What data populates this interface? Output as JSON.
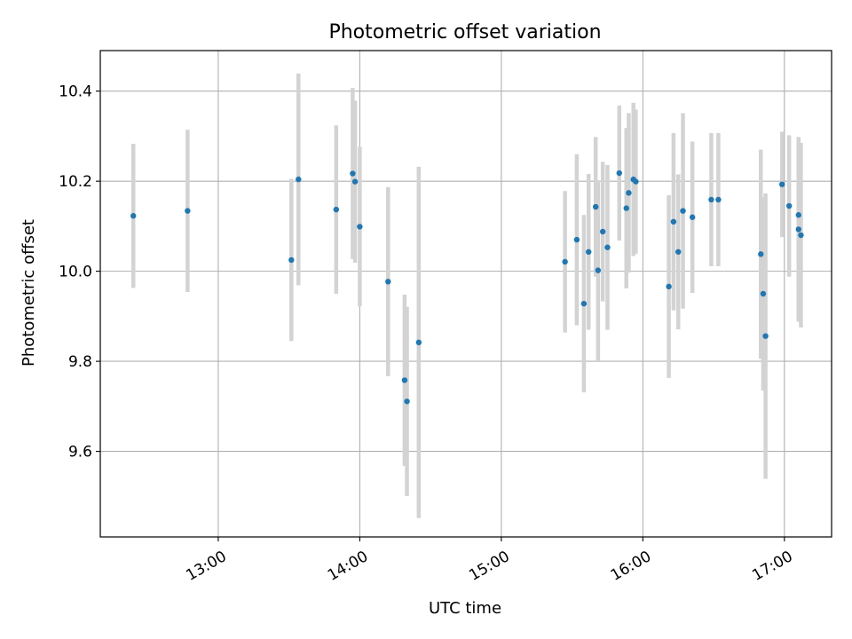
{
  "chart_data": {
    "type": "scatter",
    "title": "Photometric offset variation",
    "xlabel": "UTC time",
    "ylabel": "Photometric offset",
    "x_unit": "UTC hours",
    "xlim": [
      "12:10",
      "17:20"
    ],
    "ylim": [
      9.41,
      10.49
    ],
    "x_ticks": [
      {
        "time": "13:00",
        "label": "13:00"
      },
      {
        "time": "14:00",
        "label": "14:00"
      },
      {
        "time": "15:00",
        "label": "15:00"
      },
      {
        "time": "16:00",
        "label": "16:00"
      },
      {
        "time": "17:00",
        "label": "17:00"
      }
    ],
    "y_ticks": [
      {
        "value": 9.6,
        "label": "9.6"
      },
      {
        "value": 9.8,
        "label": "9.8"
      },
      {
        "value": 10.0,
        "label": "10.0"
      },
      {
        "value": 10.2,
        "label": "10.2"
      },
      {
        "value": 10.4,
        "label": "10.4"
      }
    ],
    "grid": true,
    "marker_color": "#1f77b4",
    "errorbar_color": "#d3d3d3",
    "points": [
      {
        "time": "12:24",
        "y": 10.123,
        "err": 0.16
      },
      {
        "time": "12:47",
        "y": 10.134,
        "err": 0.18
      },
      {
        "time": "13:31",
        "y": 10.025,
        "err": 0.18
      },
      {
        "time": "13:34",
        "y": 10.204,
        "err": 0.235
      },
      {
        "time": "13:50",
        "y": 10.137,
        "err": 0.187
      },
      {
        "time": "13:57",
        "y": 10.217,
        "err": 0.19
      },
      {
        "time": "13:58",
        "y": 10.199,
        "err": 0.18
      },
      {
        "time": "14:00",
        "y": 10.099,
        "err": 0.177
      },
      {
        "time": "14:12",
        "y": 9.977,
        "err": 0.21
      },
      {
        "time": "14:19",
        "y": 9.758,
        "err": 0.19
      },
      {
        "time": "14:20",
        "y": 9.711,
        "err": 0.21
      },
      {
        "time": "14:25",
        "y": 9.842,
        "err": 0.39
      },
      {
        "time": "15:27",
        "y": 10.021,
        "err": 0.157
      },
      {
        "time": "15:32",
        "y": 10.07,
        "err": 0.19
      },
      {
        "time": "15:35",
        "y": 9.928,
        "err": 0.197
      },
      {
        "time": "15:37",
        "y": 10.043,
        "err": 0.173
      },
      {
        "time": "15:40",
        "y": 10.143,
        "err": 0.155
      },
      {
        "time": "15:41",
        "y": 10.002,
        "err": 0.2
      },
      {
        "time": "15:43",
        "y": 10.088,
        "err": 0.155
      },
      {
        "time": "15:45",
        "y": 10.053,
        "err": 0.183
      },
      {
        "time": "15:50",
        "y": 10.218,
        "err": 0.15
      },
      {
        "time": "15:53",
        "y": 10.14,
        "err": 0.178
      },
      {
        "time": "15:54",
        "y": 10.174,
        "err": 0.177
      },
      {
        "time": "15:56",
        "y": 10.204,
        "err": 0.17
      },
      {
        "time": "15:57",
        "y": 10.199,
        "err": 0.16
      },
      {
        "time": "16:11",
        "y": 9.966,
        "err": 0.203
      },
      {
        "time": "16:13",
        "y": 10.11,
        "err": 0.197
      },
      {
        "time": "16:15",
        "y": 10.043,
        "err": 0.172
      },
      {
        "time": "16:17",
        "y": 10.134,
        "err": 0.217
      },
      {
        "time": "16:21",
        "y": 10.12,
        "err": 0.168
      },
      {
        "time": "16:29",
        "y": 10.159,
        "err": 0.148
      },
      {
        "time": "16:32",
        "y": 10.159,
        "err": 0.148
      },
      {
        "time": "16:50",
        "y": 10.038,
        "err": 0.232
      },
      {
        "time": "16:51",
        "y": 9.95,
        "err": 0.215
      },
      {
        "time": "16:52",
        "y": 9.856,
        "err": 0.317
      },
      {
        "time": "16:59",
        "y": 10.193,
        "err": 0.117
      },
      {
        "time": "17:02",
        "y": 10.145,
        "err": 0.157
      },
      {
        "time": "17:06",
        "y": 10.125,
        "err": 0.165
      },
      {
        "time": "17:06",
        "y": 10.093,
        "err": 0.205
      },
      {
        "time": "17:07",
        "y": 10.08,
        "err": 0.205
      }
    ]
  }
}
